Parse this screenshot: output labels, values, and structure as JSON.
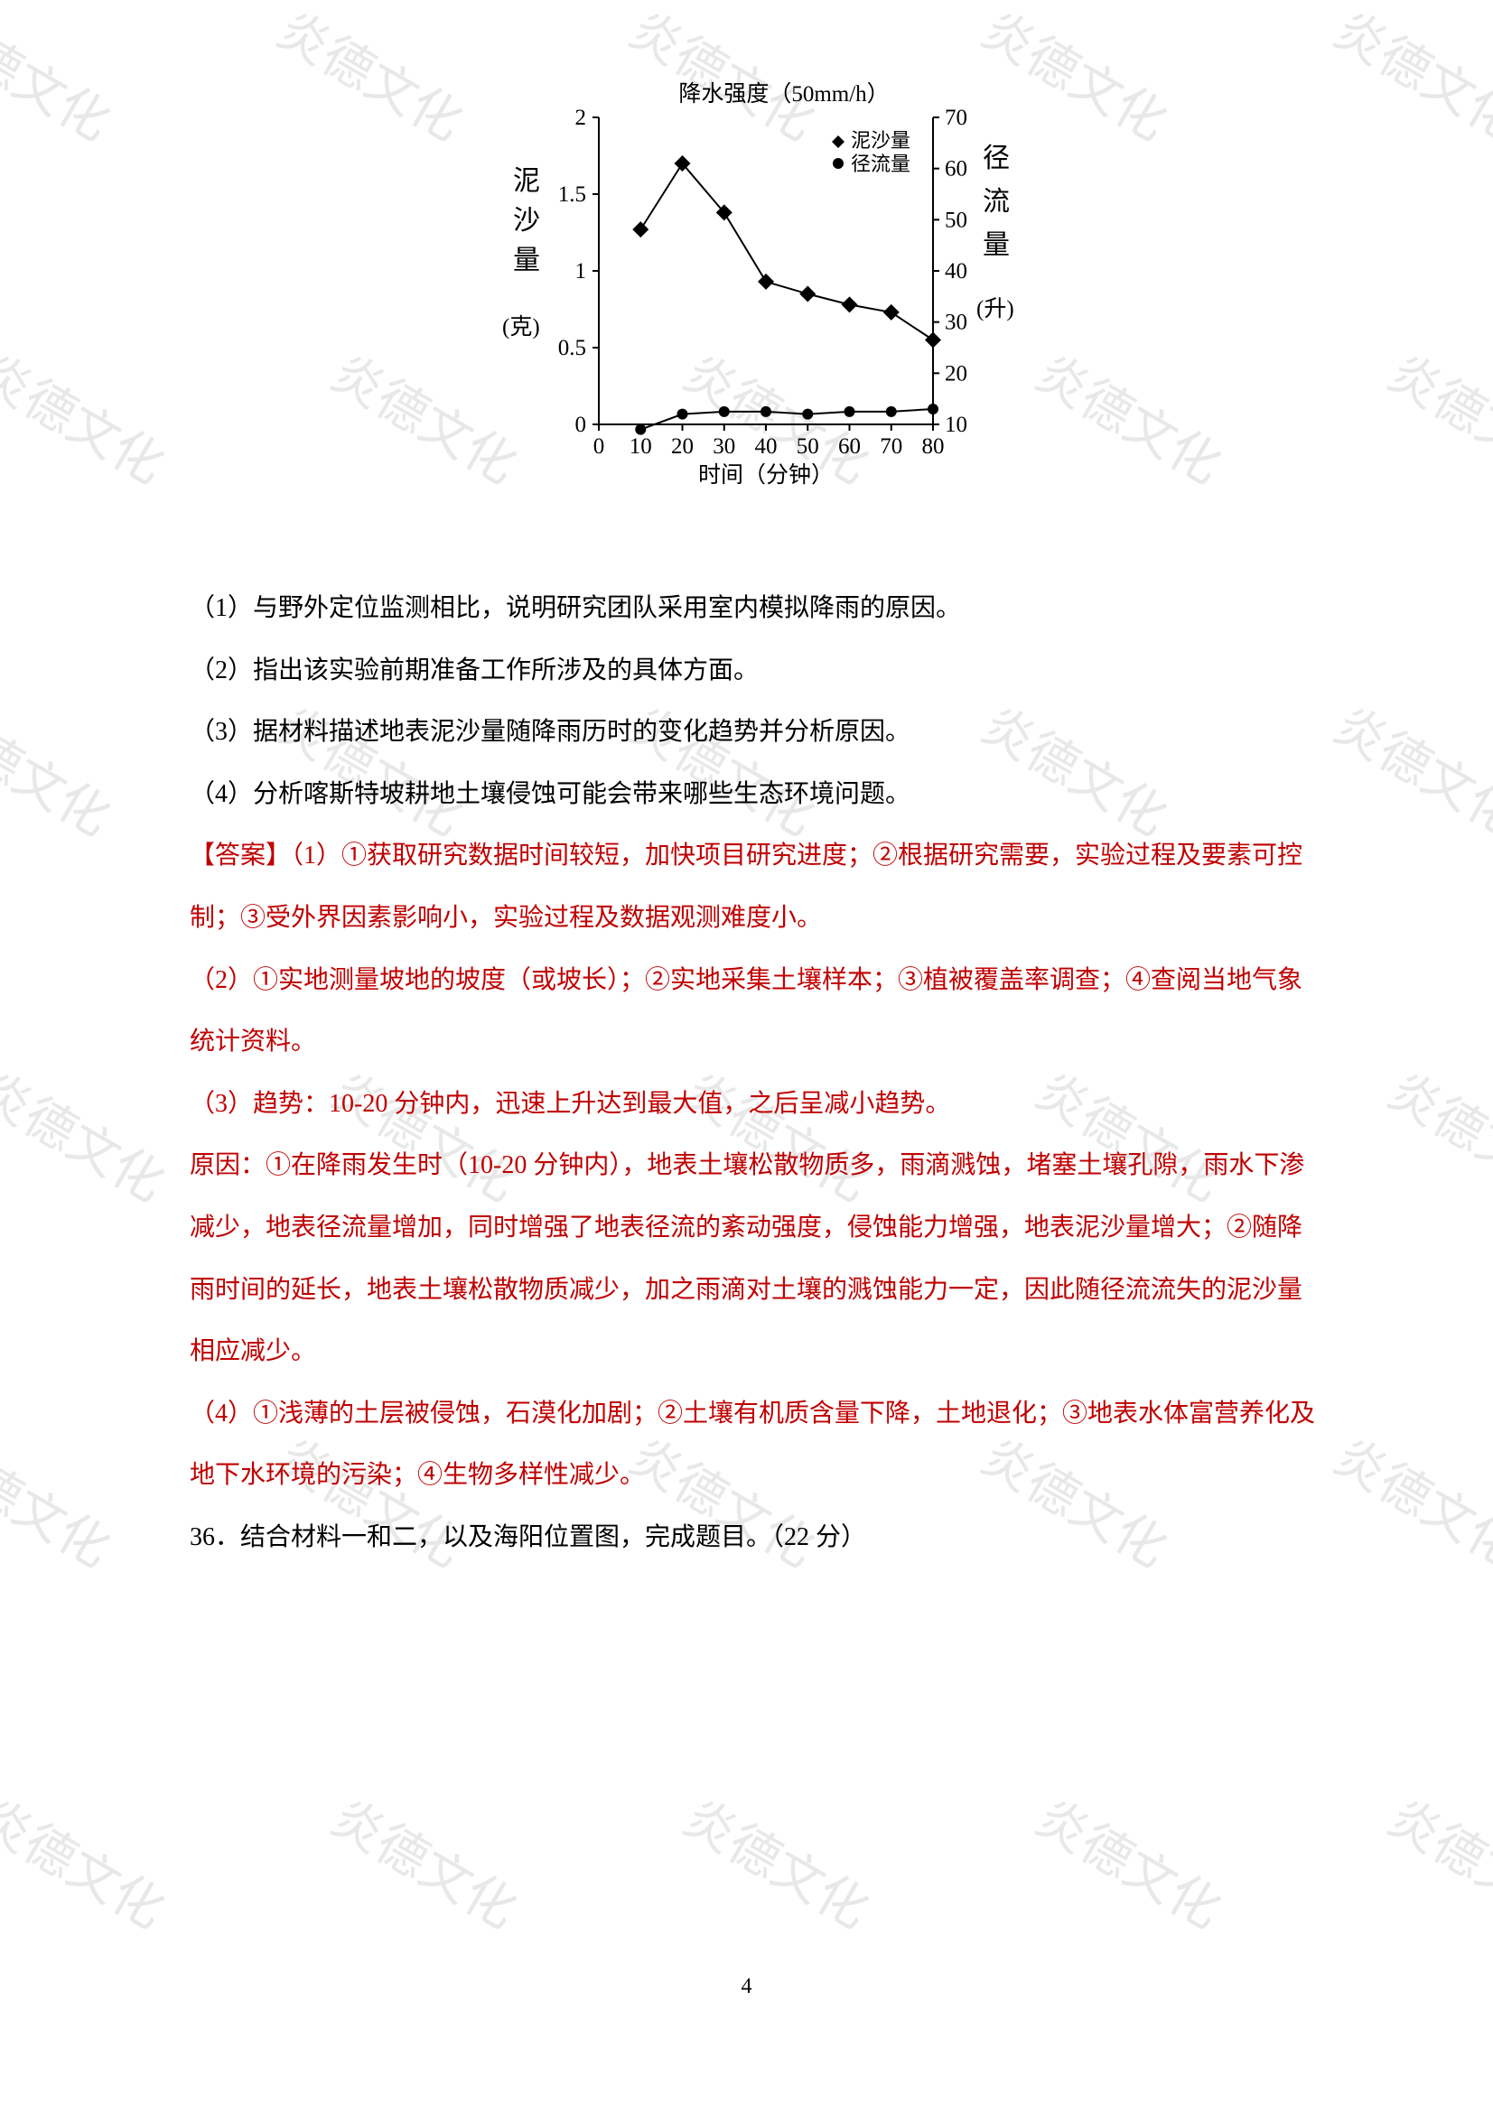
{
  "watermark_text": "炎德文化",
  "chart": {
    "type": "line",
    "title": "降水强度（50mm/h）",
    "title_fontsize": 25,
    "x_label": "时间（分钟）",
    "y_left_label_chars": [
      "泥",
      "沙",
      "量"
    ],
    "y_left_unit": "(克)",
    "y_right_label_chars": [
      "径",
      "流",
      "量"
    ],
    "y_right_unit": "(升)",
    "label_fontsize": 25,
    "x_ticks": [
      0,
      10,
      20,
      30,
      40,
      50,
      60,
      70,
      80
    ],
    "y_left_ticks": [
      0,
      0.5,
      1.0,
      1.5,
      2.0
    ],
    "y_right_ticks": [
      10,
      20,
      30,
      40,
      50,
      60,
      70
    ],
    "ylim_left": [
      0,
      2.0
    ],
    "ylim_right": [
      10,
      70
    ],
    "xlim": [
      0,
      80
    ],
    "legend": [
      {
        "label": "泥沙量",
        "marker": "diamond"
      },
      {
        "label": "径流量",
        "marker": "circle"
      }
    ],
    "series_sediment": {
      "x": [
        10,
        20,
        30,
        40,
        50,
        60,
        70,
        80
      ],
      "y": [
        1.27,
        1.7,
        1.38,
        0.93,
        0.85,
        0.78,
        0.73,
        0.55
      ],
      "marker": "diamond",
      "color": "#000000",
      "line_width": 2,
      "marker_size": 9
    },
    "series_runoff": {
      "x": [
        10,
        20,
        30,
        40,
        50,
        60,
        70,
        80
      ],
      "y": [
        9,
        12,
        12.5,
        12.5,
        12,
        12.5,
        12.5,
        13
      ],
      "marker": "circle",
      "color": "#000000",
      "line_width": 2,
      "marker_size": 6
    },
    "axis_color": "#000000",
    "axis_width": 2,
    "background_color": "#ffffff"
  },
  "q1": "（1）与野外定位监测相比，说明研究团队采用室内模拟降雨的原因。",
  "q2": "（2）指出该实验前期准备工作所涉及的具体方面。",
  "q3": "（3）据材料描述地表泥沙量随降雨历时的变化趋势并分析原因。",
  "q4": "（4）分析喀斯特坡耕地土壤侵蚀可能会带来哪些生态环境问题。",
  "ans_label": "【答案】",
  "a1": "（1）①获取研究数据时间较短，加快项目研究进度；②根据研究需要，实验过程及要素可控制；③受外界因素影响小，实验过程及数据观测难度小。",
  "a2": "（2）①实地测量坡地的坡度（或坡长）；②实地采集土壤样本；③植被覆盖率调查；④查阅当地气象统计资料。",
  "a3_trend": "（3）趋势：10-20 分钟内，迅速上升达到最大值，之后呈减小趋势。",
  "a3_reason": "原因：①在降雨发生时（10-20 分钟内），地表土壤松散物质多，雨滴溅蚀，堵塞土壤孔隙，雨水下渗减少，地表径流量增加，同时增强了地表径流的紊动强度，侵蚀能力增强，地表泥沙量增大；②随降雨时间的延长，地表土壤松散物质减少，加之雨滴对土壤的溅蚀能力一定，因此随径流流失的泥沙量相应减少。",
  "a4": "（4）①浅薄的土层被侵蚀，石漠化加剧；②土壤有机质含量下降，土地退化；③地表水体富营养化及地下水环境的污染；④生物多样性减少。",
  "q36": "36．结合材料一和二，以及海阳位置图，完成题目。（22 分）",
  "page_number": "4"
}
